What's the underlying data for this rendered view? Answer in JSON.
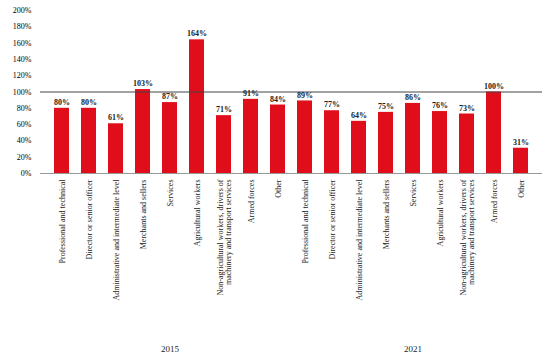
{
  "chart_data": {
    "type": "bar",
    "categories": [
      "Professional and technical",
      "Director or senior officer",
      "Administrative and intermediate level",
      "Merchants and sellers",
      "Services",
      "Agricultural workers",
      "Non-agricultural workers, drivers of machinery and transport services",
      "Armed forces",
      "Other",
      "Professional and technical",
      "Director or senior officer",
      "Administrative and intermediate level",
      "Merchants and sellers",
      "Services",
      "Agricultural workers",
      "Non-agricultural workers, drivers of machinery and transport services",
      "Armed forces",
      "Other"
    ],
    "groups": [
      "2015",
      "2015",
      "2015",
      "2015",
      "2015",
      "2015",
      "2015",
      "2015",
      "2015",
      "2021",
      "2021",
      "2021",
      "2021",
      "2021",
      "2021",
      "2021",
      "2021",
      "2021"
    ],
    "values": [
      80,
      80,
      61,
      103,
      87,
      164,
      71,
      91,
      84,
      89,
      77,
      64,
      75,
      86,
      76,
      73,
      100,
      31
    ],
    "value_labels": [
      "80%",
      "80%",
      "61%",
      "103%",
      "87%",
      "164%",
      "71%",
      "91%",
      "84%",
      "89%",
      "77%",
      "64%",
      "75%",
      "86%",
      "76%",
      "73%",
      "100%",
      "31%"
    ],
    "data_labels": true,
    "color": "#e00d1a",
    "reference_line": 100,
    "ylim": [
      0,
      200
    ],
    "yticks": [
      {
        "value": 0,
        "label": "0%"
      },
      {
        "value": 20,
        "label": "20%"
      },
      {
        "value": 40,
        "label": "40%"
      },
      {
        "value": 60,
        "label": "60%"
      },
      {
        "value": 80,
        "label": "80%"
      },
      {
        "value": 100,
        "label": "100%"
      },
      {
        "value": 120,
        "label": "120%"
      },
      {
        "value": 140,
        "label": "140%"
      },
      {
        "value": 160,
        "label": "160%"
      },
      {
        "value": 180,
        "label": "180%"
      },
      {
        "value": 200,
        "label": "200%"
      }
    ],
    "grid": false
  }
}
